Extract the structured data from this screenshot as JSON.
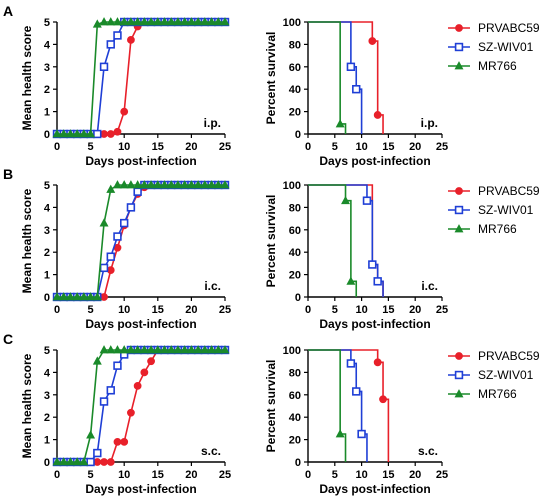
{
  "legend": {
    "entries": [
      {
        "name": "PRVABC59",
        "color": "#e8202a",
        "marker": "circle"
      },
      {
        "name": "SZ-WIV01",
        "color": "#1f3fd6",
        "marker": "square"
      },
      {
        "name": "MR766",
        "color": "#1a8a2a",
        "marker": "triangle"
      }
    ]
  },
  "chart_data": [
    {
      "panel": "A",
      "type": "line",
      "route": "i.p.",
      "xlabel": "Days post-infection",
      "ylabel": "Mean health score",
      "xlim": [
        0,
        25
      ],
      "ylim": [
        0,
        5
      ],
      "xticks": [
        0,
        5,
        10,
        15,
        20,
        25
      ],
      "yticks": [
        0,
        1,
        2,
        3,
        4,
        5
      ],
      "series": [
        {
          "name": "PRVABC59",
          "x": [
            0,
            1,
            2,
            3,
            4,
            5,
            6,
            7,
            8,
            9,
            10,
            11,
            12,
            13,
            14,
            15,
            16,
            17,
            18,
            19,
            20,
            21,
            22,
            23,
            24,
            25
          ],
          "y": [
            0,
            0,
            0,
            0,
            0,
            0,
            0,
            0,
            0,
            0.1,
            1,
            4.2,
            4.8,
            5,
            5,
            5,
            5,
            5,
            5,
            5,
            5,
            5,
            5,
            5,
            5,
            5
          ]
        },
        {
          "name": "SZ-WIV01",
          "x": [
            0,
            1,
            2,
            3,
            4,
            5,
            6,
            7,
            8,
            9,
            10,
            11,
            12,
            13,
            14,
            15,
            16,
            17,
            18,
            19,
            20,
            21,
            22,
            23,
            24,
            25
          ],
          "y": [
            0,
            0,
            0,
            0,
            0,
            0,
            0,
            3,
            4,
            4.4,
            5,
            5,
            5,
            5,
            5,
            5,
            5,
            5,
            5,
            5,
            5,
            5,
            5,
            5,
            5,
            5
          ]
        },
        {
          "name": "MR766",
          "x": [
            0,
            1,
            2,
            3,
            4,
            5,
            6,
            7,
            8,
            9,
            10,
            11,
            12,
            13,
            14,
            15,
            16,
            17,
            18,
            19,
            20,
            21,
            22,
            23,
            24,
            25
          ],
          "y": [
            0,
            0,
            0,
            0,
            0,
            0,
            4.9,
            5,
            5,
            5,
            5,
            5,
            5,
            5,
            5,
            5,
            5,
            5,
            5,
            5,
            5,
            5,
            5,
            5,
            5,
            5
          ]
        }
      ]
    },
    {
      "panel": "A",
      "type": "line",
      "step": true,
      "xlabel": "Days post-infection",
      "ylabel": "Percent survival",
      "route": "i.p.",
      "xlim": [
        0,
        25
      ],
      "ylim": [
        0,
        100
      ],
      "xticks": [
        0,
        5,
        10,
        15,
        20,
        25
      ],
      "yticks": [
        0,
        20,
        40,
        60,
        80,
        100
      ],
      "series": [
        {
          "name": "PRVABC59",
          "x": [
            0,
            12,
            13,
            14
          ],
          "y": [
            100,
            83,
            17,
            0
          ]
        },
        {
          "name": "SZ-WIV01",
          "x": [
            0,
            8,
            9,
            10
          ],
          "y": [
            100,
            60,
            40,
            0
          ]
        },
        {
          "name": "MR766",
          "x": [
            0,
            6,
            7
          ],
          "y": [
            100,
            9,
            0
          ]
        }
      ]
    },
    {
      "panel": "B",
      "type": "line",
      "route": "i.c.",
      "xlabel": "Days post-infection",
      "ylabel": "Mean health score",
      "xlim": [
        0,
        25
      ],
      "ylim": [
        0,
        5
      ],
      "xticks": [
        0,
        5,
        10,
        15,
        20,
        25
      ],
      "yticks": [
        0,
        1,
        2,
        3,
        4,
        5
      ],
      "series": [
        {
          "name": "PRVABC59",
          "x": [
            0,
            1,
            2,
            3,
            4,
            5,
            6,
            7,
            8,
            9,
            10,
            11,
            12,
            13,
            14,
            15,
            16,
            17,
            18,
            19,
            20,
            21,
            22,
            23,
            24,
            25
          ],
          "y": [
            0,
            0,
            0,
            0,
            0,
            0,
            0,
            0,
            1.2,
            2.2,
            3.2,
            4,
            4.6,
            4.9,
            5,
            5,
            5,
            5,
            5,
            5,
            5,
            5,
            5,
            5,
            5,
            5
          ]
        },
        {
          "name": "SZ-WIV01",
          "x": [
            0,
            1,
            2,
            3,
            4,
            5,
            6,
            7,
            8,
            9,
            10,
            11,
            12,
            13,
            14,
            15,
            16,
            17,
            18,
            19,
            20,
            21,
            22,
            23,
            24,
            25
          ],
          "y": [
            0,
            0,
            0,
            0,
            0,
            0,
            0,
            1.3,
            1.8,
            2.7,
            3.3,
            4,
            4.7,
            5,
            5,
            5,
            5,
            5,
            5,
            5,
            5,
            5,
            5,
            5,
            5,
            5
          ]
        },
        {
          "name": "MR766",
          "x": [
            0,
            1,
            2,
            3,
            4,
            5,
            6,
            7,
            8,
            9,
            10,
            11,
            12,
            13,
            14,
            15,
            16,
            17,
            18,
            19,
            20,
            21,
            22,
            23,
            24,
            25
          ],
          "y": [
            0,
            0,
            0,
            0,
            0,
            0,
            0,
            3.3,
            4.8,
            5,
            5,
            5,
            5,
            5,
            5,
            5,
            5,
            5,
            5,
            5,
            5,
            5,
            5,
            5,
            5,
            5
          ]
        }
      ]
    },
    {
      "panel": "B",
      "type": "line",
      "step": true,
      "xlabel": "Days post-infection",
      "ylabel": "Percent survival",
      "route": "i.c.",
      "xlim": [
        0,
        25
      ],
      "ylim": [
        0,
        100
      ],
      "xticks": [
        0,
        5,
        10,
        15,
        20,
        25
      ],
      "yticks": [
        0,
        20,
        40,
        60,
        80,
        100
      ],
      "series": [
        {
          "name": "PRVABC59",
          "x": [
            0,
            12,
            13,
            14
          ],
          "y": [
            100,
            29,
            14,
            0
          ]
        },
        {
          "name": "SZ-WIV01",
          "x": [
            0,
            11,
            12,
            13,
            14
          ],
          "y": [
            100,
            86,
            29,
            14,
            0
          ]
        },
        {
          "name": "MR766",
          "x": [
            0,
            7,
            8,
            9
          ],
          "y": [
            100,
            86,
            14,
            0
          ]
        }
      ]
    },
    {
      "panel": "C",
      "type": "line",
      "route": "s.c.",
      "xlabel": "Days post-infection",
      "ylabel": "Mean health score",
      "xlim": [
        0,
        25
      ],
      "ylim": [
        0,
        5
      ],
      "xticks": [
        0,
        5,
        10,
        15,
        20,
        25
      ],
      "yticks": [
        0,
        1,
        2,
        3,
        4,
        5
      ],
      "series": [
        {
          "name": "PRVABC59",
          "x": [
            0,
            1,
            2,
            3,
            4,
            5,
            6,
            7,
            8,
            9,
            10,
            11,
            12,
            13,
            14,
            15,
            16,
            17,
            18,
            19,
            20,
            21,
            22,
            23,
            24,
            25
          ],
          "y": [
            0,
            0,
            0,
            0,
            0,
            0,
            0,
            0,
            0,
            0.9,
            0.9,
            2.2,
            3.4,
            4,
            4.5,
            5,
            5,
            5,
            5,
            5,
            5,
            5,
            5,
            5,
            5,
            5
          ]
        },
        {
          "name": "SZ-WIV01",
          "x": [
            0,
            1,
            2,
            3,
            4,
            5,
            6,
            7,
            8,
            9,
            10,
            11,
            12,
            13,
            14,
            15,
            16,
            17,
            18,
            19,
            20,
            21,
            22,
            23,
            24,
            25
          ],
          "y": [
            0,
            0,
            0,
            0,
            0,
            0,
            0.4,
            2.7,
            3.2,
            4.3,
            4.8,
            5,
            5,
            5,
            5,
            5,
            5,
            5,
            5,
            5,
            5,
            5,
            5,
            5,
            5,
            5
          ]
        },
        {
          "name": "MR766",
          "x": [
            0,
            1,
            2,
            3,
            4,
            5,
            6,
            7,
            8,
            9,
            10,
            11,
            12,
            13,
            14,
            15,
            16,
            17,
            18,
            19,
            20,
            21,
            22,
            23,
            24,
            25
          ],
          "y": [
            0,
            0,
            0,
            0,
            0,
            1.2,
            4.5,
            5,
            5,
            5,
            5,
            5,
            5,
            5,
            5,
            5,
            5,
            5,
            5,
            5,
            5,
            5,
            5,
            5,
            5,
            5
          ]
        }
      ]
    },
    {
      "panel": "C",
      "type": "line",
      "step": true,
      "xlabel": "Days post-infection",
      "ylabel": "Percent survival",
      "route": "s.c.",
      "xlim": [
        0,
        25
      ],
      "ylim": [
        0,
        100
      ],
      "xticks": [
        0,
        5,
        10,
        15,
        20,
        25
      ],
      "yticks": [
        0,
        20,
        40,
        60,
        80,
        100
      ],
      "series": [
        {
          "name": "PRVABC59",
          "x": [
            0,
            13,
            14,
            15
          ],
          "y": [
            100,
            89,
            56,
            0
          ]
        },
        {
          "name": "SZ-WIV01",
          "x": [
            0,
            8,
            9,
            10,
            11
          ],
          "y": [
            100,
            88,
            63,
            25,
            0
          ]
        },
        {
          "name": "MR766",
          "x": [
            0,
            6,
            7
          ],
          "y": [
            100,
            25,
            0
          ]
        }
      ]
    }
  ]
}
